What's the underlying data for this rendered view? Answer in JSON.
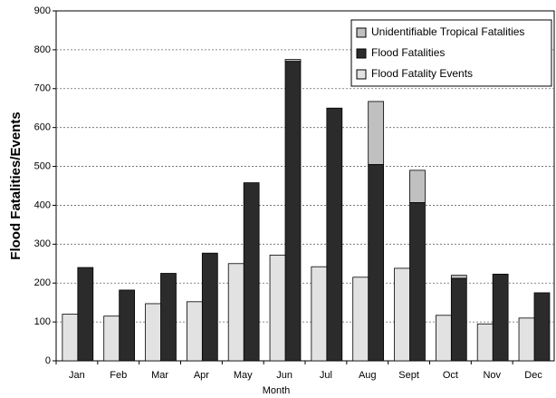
{
  "chart_data": {
    "type": "bar",
    "categories": [
      "Jan",
      "Feb",
      "Mar",
      "Apr",
      "May",
      "Jun",
      "Jul",
      "Aug",
      "Sept",
      "Oct",
      "Nov",
      "Dec"
    ],
    "series": [
      {
        "name": "Unidentifiable Tropical Fatalities",
        "color": "#c0c0c0",
        "stack_on": 1,
        "values": [
          0,
          0,
          0,
          0,
          0,
          5,
          0,
          162,
          83,
          8,
          0,
          0
        ]
      },
      {
        "name": "Flood Fatalities",
        "color": "#2b2b2b",
        "values": [
          240,
          182,
          225,
          277,
          458,
          770,
          650,
          505,
          407,
          212,
          223,
          175
        ]
      },
      {
        "name": "Flood Fatality Events",
        "color": "#e2e2e2",
        "values": [
          120,
          115,
          147,
          152,
          250,
          272,
          242,
          215,
          238,
          117,
          95,
          110
        ]
      }
    ],
    "x_label": "Month",
    "y_label": "Flood Fatalities/Events",
    "ylim": [
      0,
      900
    ],
    "yticks": [
      0,
      100,
      200,
      300,
      400,
      500,
      600,
      700,
      800,
      900
    ],
    "grid": true,
    "legend": "upper right"
  }
}
